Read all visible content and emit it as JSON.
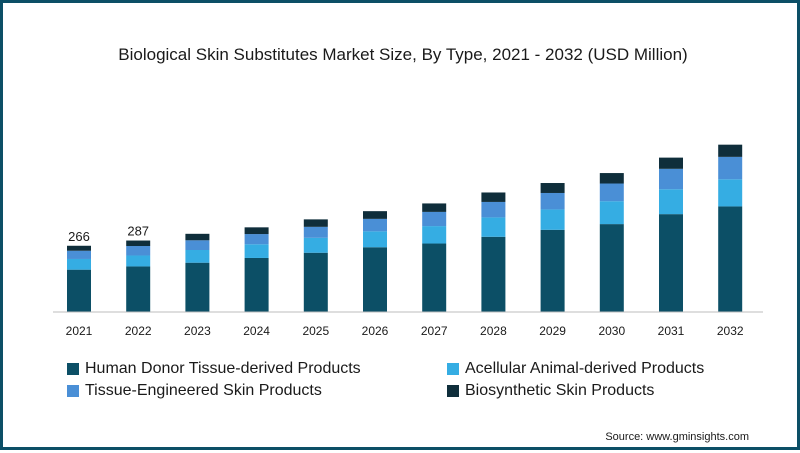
{
  "chart_data": {
    "type": "bar",
    "stacked": true,
    "title": "Biological Skin Substitutes Market Size, By Type, 2021 - 2032 (USD Million)",
    "categories": [
      "2021",
      "2022",
      "2023",
      "2024",
      "2025",
      "2026",
      "2027",
      "2028",
      "2029",
      "2030",
      "2031",
      "2032"
    ],
    "series": [
      {
        "name": "Human Donor Tissue-derived Products",
        "color": "#0c4f66",
        "values": [
          170,
          183,
          198,
          217,
          238,
          260,
          275,
          302,
          330,
          353,
          393,
          424
        ]
      },
      {
        "name": "Acellular Animal-derived Products",
        "color": "#35ade3",
        "values": [
          43,
          44,
          51,
          55,
          60,
          64,
          70,
          78,
          82,
          92,
          100,
          109
        ]
      },
      {
        "name": "Tissue-Engineered Skin Products",
        "color": "#4a8fd6",
        "values": [
          33,
          38,
          39,
          41,
          44,
          50,
          57,
          62,
          66,
          71,
          82,
          90
        ]
      },
      {
        "name": "Biosynthetic Skin Products",
        "color": "#0f2e3b",
        "values": [
          20,
          22,
          26,
          27,
          30,
          31,
          34,
          38,
          40,
          42,
          45,
          49
        ]
      }
    ],
    "data_labels": {
      "2021": "266",
      "2022": "287"
    },
    "ylim": [
      0,
      1000
    ],
    "xlabel": "",
    "ylabel": "",
    "grid": false,
    "legend_position": "bottom"
  },
  "source": "Source: www.gminsights.com"
}
